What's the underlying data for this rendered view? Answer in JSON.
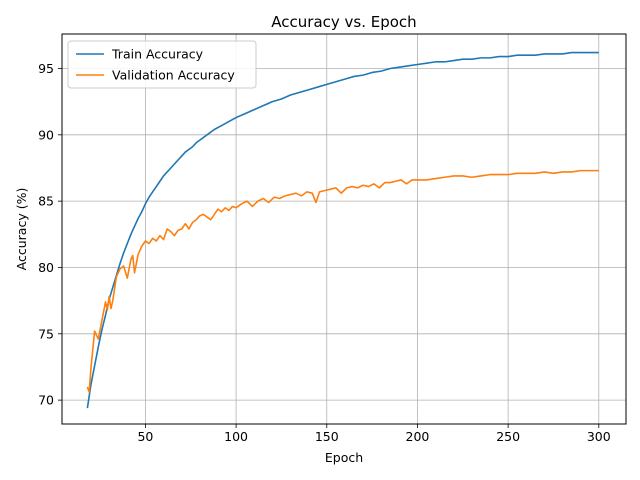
{
  "chart_data": {
    "type": "line",
    "title": "Accuracy vs. Epoch",
    "xlabel": "Epoch",
    "ylabel": "Accuracy (%)",
    "xlim": [
      4,
      315
    ],
    "ylim": [
      68.2,
      97.6
    ],
    "xticks": [
      50,
      100,
      150,
      200,
      250,
      300
    ],
    "yticks": [
      70,
      75,
      80,
      85,
      90,
      95
    ],
    "grid": true,
    "legend_position": "top-left",
    "series": [
      {
        "name": "Train Accuracy",
        "color": "#1f77b4",
        "x": [
          18,
          20,
          22,
          24,
          26,
          28,
          30,
          32,
          34,
          36,
          38,
          40,
          42,
          44,
          46,
          48,
          50,
          52,
          54,
          56,
          58,
          60,
          62,
          64,
          66,
          68,
          70,
          72,
          74,
          76,
          78,
          80,
          84,
          88,
          92,
          96,
          100,
          105,
          110,
          115,
          120,
          125,
          130,
          135,
          140,
          145,
          150,
          155,
          160,
          165,
          170,
          175,
          180,
          185,
          190,
          195,
          200,
          205,
          210,
          215,
          220,
          225,
          230,
          235,
          240,
          245,
          250,
          255,
          260,
          265,
          270,
          275,
          280,
          285,
          290,
          295,
          300
        ],
        "y": [
          69.4,
          71.2,
          72.6,
          74.0,
          75.3,
          76.4,
          77.6,
          78.5,
          79.4,
          80.3,
          81.1,
          81.8,
          82.5,
          83.1,
          83.7,
          84.2,
          84.8,
          85.3,
          85.7,
          86.1,
          86.5,
          86.9,
          87.2,
          87.5,
          87.8,
          88.1,
          88.4,
          88.7,
          88.9,
          89.1,
          89.4,
          89.6,
          90.0,
          90.4,
          90.7,
          91.0,
          91.3,
          91.6,
          91.9,
          92.2,
          92.5,
          92.7,
          93.0,
          93.2,
          93.4,
          93.6,
          93.8,
          94.0,
          94.2,
          94.4,
          94.5,
          94.7,
          94.8,
          95.0,
          95.1,
          95.2,
          95.3,
          95.4,
          95.5,
          95.5,
          95.6,
          95.7,
          95.7,
          95.8,
          95.8,
          95.9,
          95.9,
          96.0,
          96.0,
          96.0,
          96.1,
          96.1,
          96.1,
          96.2,
          96.2,
          96.2,
          96.2
        ]
      },
      {
        "name": "Validation Accuracy",
        "color": "#ff7f0e",
        "x": [
          18,
          19,
          20,
          22,
          24,
          26,
          28,
          29,
          30,
          31,
          32,
          34,
          36,
          38,
          40,
          42,
          43,
          44,
          46,
          48,
          50,
          52,
          54,
          56,
          58,
          60,
          62,
          64,
          66,
          68,
          70,
          72,
          74,
          76,
          78,
          80,
          82,
          84,
          86,
          88,
          90,
          92,
          94,
          96,
          98,
          100,
          103,
          106,
          109,
          112,
          115,
          118,
          121,
          124,
          127,
          130,
          133,
          136,
          139,
          142,
          144,
          146,
          149,
          152,
          155,
          158,
          161,
          164,
          167,
          170,
          173,
          176,
          179,
          182,
          185,
          188,
          191,
          194,
          197,
          200,
          205,
          210,
          215,
          220,
          225,
          230,
          235,
          240,
          245,
          250,
          255,
          260,
          265,
          270,
          275,
          280,
          285,
          290,
          295,
          300
        ],
        "y": [
          71.0,
          70.6,
          72.5,
          75.2,
          74.6,
          76.0,
          77.4,
          76.8,
          77.8,
          76.9,
          77.5,
          79.3,
          79.9,
          80.1,
          79.2,
          80.6,
          80.9,
          79.6,
          81.0,
          81.6,
          82.0,
          81.8,
          82.2,
          82.0,
          82.4,
          82.1,
          82.9,
          82.7,
          82.4,
          82.8,
          82.9,
          83.3,
          82.9,
          83.4,
          83.6,
          83.9,
          84.0,
          83.8,
          83.6,
          84.0,
          84.4,
          84.2,
          84.5,
          84.3,
          84.6,
          84.5,
          84.8,
          85.0,
          84.6,
          85.0,
          85.2,
          84.9,
          85.3,
          85.2,
          85.4,
          85.5,
          85.6,
          85.4,
          85.7,
          85.6,
          84.9,
          85.7,
          85.8,
          85.9,
          86.0,
          85.6,
          86.0,
          86.1,
          86.0,
          86.2,
          86.1,
          86.3,
          86.0,
          86.4,
          86.4,
          86.5,
          86.6,
          86.3,
          86.6,
          86.6,
          86.6,
          86.7,
          86.8,
          86.9,
          86.9,
          86.8,
          86.9,
          87.0,
          87.0,
          87.0,
          87.1,
          87.1,
          87.1,
          87.2,
          87.1,
          87.2,
          87.2,
          87.3,
          87.3,
          87.3
        ]
      }
    ]
  }
}
